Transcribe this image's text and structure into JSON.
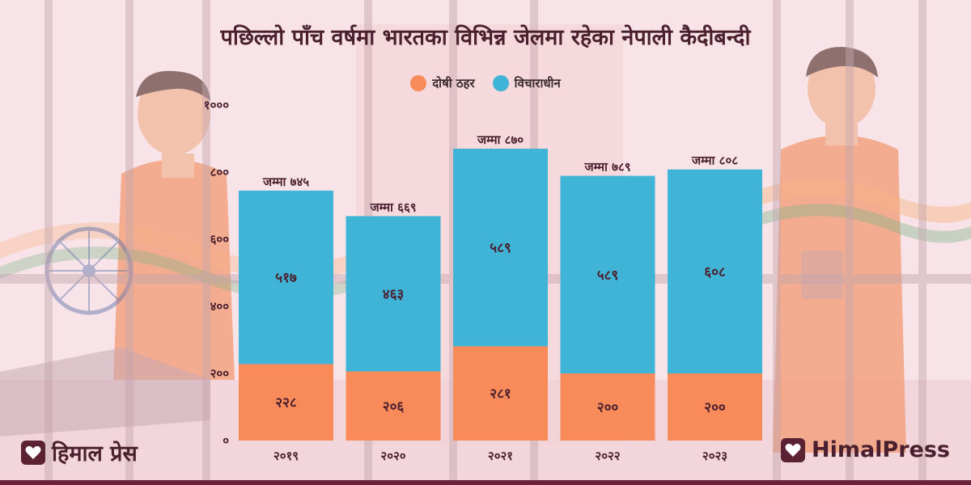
{
  "chart_data": {
    "type": "stacked-bar",
    "title": "पछिल्लो पाँच वर्षमा भारतका विभिन्न जेलमा रहेका नेपाली कैदीबन्दी",
    "categories": [
      "२०१९",
      "२०२०",
      "२०२१",
      "२०२२",
      "२०२३"
    ],
    "series": [
      {
        "name": "दोषी ठहर",
        "color": "#f98b5b",
        "values": [
          228,
          206,
          281,
          200,
          200
        ],
        "labels": [
          "२२८",
          "२०६",
          "२८१",
          "२००",
          "२००"
        ]
      },
      {
        "name": "विचाराधीन",
        "color": "#40b4d6",
        "values": [
          517,
          463,
          589,
          589,
          608
        ],
        "labels": [
          "५१७",
          "४६३",
          "५८९",
          "५८९",
          "६०८"
        ]
      }
    ],
    "totals": [
      745,
      669,
      870,
      789,
      808
    ],
    "total_labels": [
      "जम्मा ७४५",
      "जम्मा ६६९",
      "जम्मा ८७०",
      "जम्मा ७८९",
      "जम्मा ८०८"
    ],
    "ylim": [
      0,
      1000
    ],
    "yticks": [
      0,
      200,
      400,
      600,
      800,
      1000
    ],
    "ytick_labels": [
      "०",
      "२००",
      "४००",
      "६००",
      "८००",
      "१०००"
    ],
    "legend": "top-center"
  },
  "branding": {
    "left_logo": "हिमाल प्रेस",
    "right_logo": "HimalPress"
  },
  "colors": {
    "background": "#f7e3e7",
    "bars": "#4a1f2e",
    "accent": "#6b2238"
  }
}
